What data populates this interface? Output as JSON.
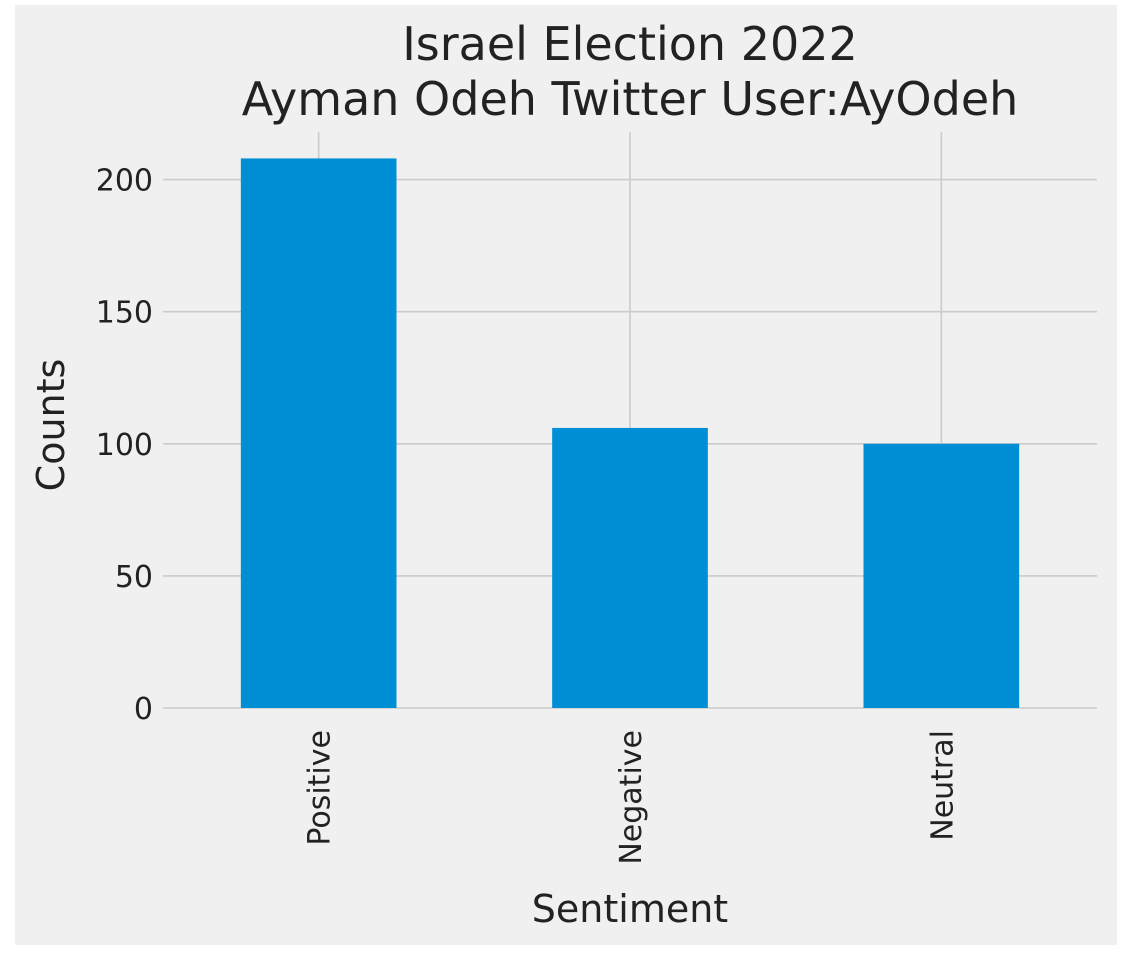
{
  "chart_data": {
    "type": "bar",
    "title": [
      "Israel Election 2022",
      "Ayman Odeh Twitter User:AyOdeh"
    ],
    "xlabel": "Sentiment",
    "ylabel": "Counts",
    "categories": [
      "Positive",
      "Negative",
      "Neutral"
    ],
    "values": [
      208,
      106,
      100
    ],
    "ylim": [
      0,
      218
    ],
    "yticks": [
      0,
      50,
      100,
      150,
      200
    ],
    "grid": true,
    "bar_color": "#008fd5",
    "background_color": "#f0f0f0",
    "grid_color": "#cbcbcb"
  }
}
